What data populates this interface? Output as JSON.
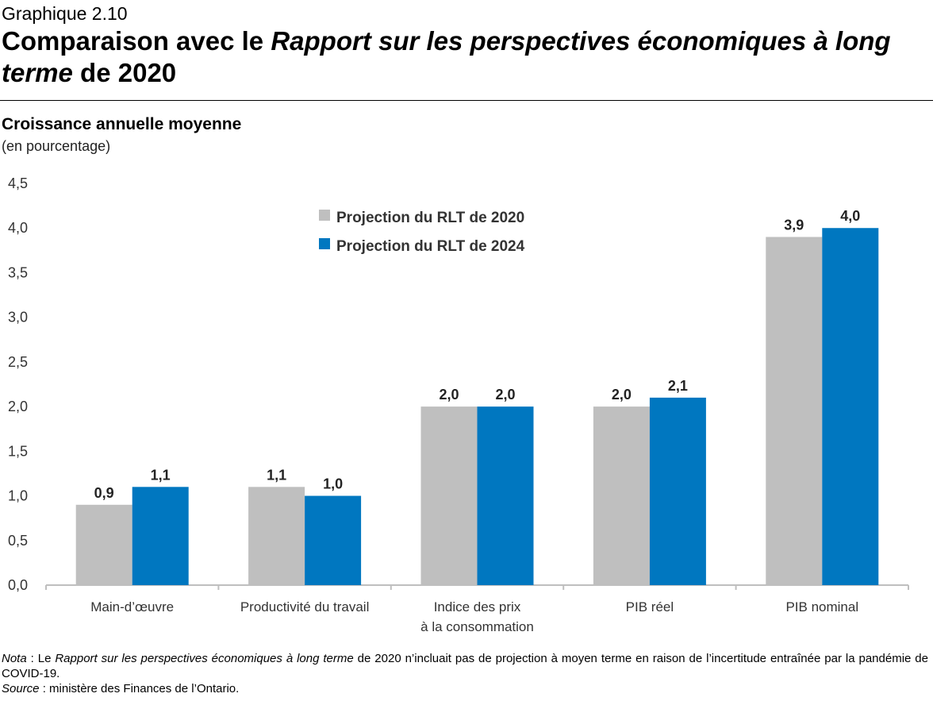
{
  "header": {
    "kicker": "Graphique 2.10",
    "title_part1": "Comparaison avec le ",
    "title_italic": "Rapport sur les perspectives économiques à long terme",
    "title_part2": " de 2020"
  },
  "chart_data": {
    "type": "bar",
    "title": "Comparaison avec le Rapport sur les perspectives économiques à long terme de 2020",
    "subtitle": "Croissance annuelle moyenne",
    "ylabel": "(en pourcentage)",
    "xlabel": "",
    "ylim": [
      0,
      4.5
    ],
    "yticks": [
      "0,0",
      "0,5",
      "1,0",
      "1,5",
      "2,0",
      "2,5",
      "3,0",
      "3,5",
      "4,0",
      "4,5"
    ],
    "categories": [
      [
        "Main-d’œuvre"
      ],
      [
        "Productivité du travail"
      ],
      [
        "Indice des prix",
        "à la consommation"
      ],
      [
        "PIB réel"
      ],
      [
        "PIB nominal"
      ]
    ],
    "series": [
      {
        "name": "Projection du RLT de 2020",
        "color": "#bfbfbf",
        "values": [
          0.9,
          1.1,
          2.0,
          2.0,
          3.9
        ],
        "labels": [
          "0,9",
          "1,1",
          "2,0",
          "2,0",
          "3,9"
        ]
      },
      {
        "name": "Projection du RLT de 2024",
        "color": "#0077c0",
        "values": [
          1.1,
          1.0,
          2.0,
          2.1,
          4.0
        ],
        "labels": [
          "1,1",
          "1,0",
          "2,0",
          "2,1",
          "4,0"
        ]
      }
    ],
    "legend_position": "top-center",
    "grid": false
  },
  "footer": {
    "note_label": "Nota",
    "note_sep": " : Le ",
    "note_italic": "Rapport sur les perspectives économiques à long terme",
    "note_rest": " de 2020 n’incluait pas de projection à moyen terme en raison de l’incertitude entraînée par la pandémie de COVID-19.",
    "source_label": "Source",
    "source_rest": " : ministère des Finances de l’Ontario."
  }
}
